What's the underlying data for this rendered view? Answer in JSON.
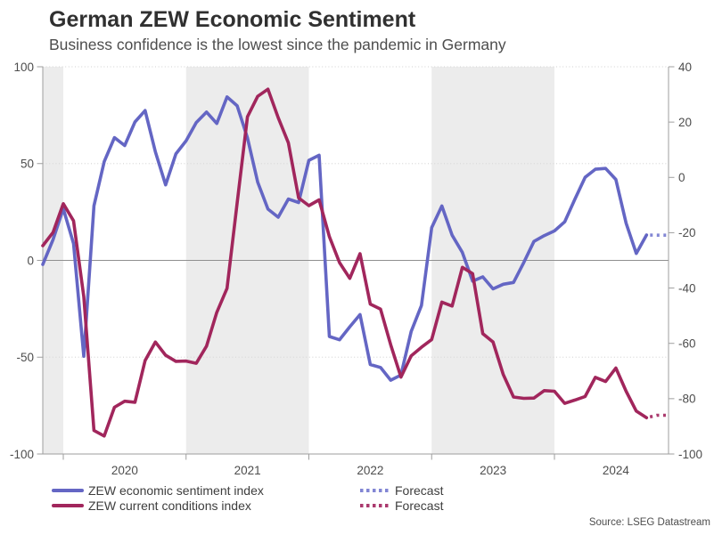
{
  "header": {
    "title": "German ZEW Economic Sentiment",
    "subtitle": "Business confidence is the lowest since the pandemic in Germany"
  },
  "source": "Source: LSEG Datastream",
  "legend": {
    "rows": [
      {
        "series": "sentiment",
        "label": "ZEW economic sentiment index",
        "forecast_label": "Forecast"
      },
      {
        "series": "conditions",
        "label": "ZEW current conditions index",
        "forecast_label": "Forecast"
      }
    ]
  },
  "colors": {
    "sentiment": "#6466c4",
    "sentiment_forecast": "#8286d4",
    "conditions": "#a1265c",
    "conditions_forecast": "#ab3a6e",
    "band": "#ececec",
    "grid_dotted": "#d9d9d9",
    "zero_line": "#8f8f8f",
    "axis": "#9e9e9e",
    "tick_label": "#4d4d4d"
  },
  "chart_data": {
    "type": "line",
    "title": "German ZEW Economic Sentiment",
    "subtitle": "Business confidence is the lowest since the pandemic in Germany",
    "start_month": "2019-11",
    "frequency": "monthly",
    "x_tick_labels": [
      "2020",
      "2021",
      "2022",
      "2023",
      "2024"
    ],
    "shaded_year_bands": [
      2019,
      2021,
      2023
    ],
    "left_axis": {
      "range": [
        -100,
        100
      ],
      "ticks": [
        100,
        50,
        0,
        -50,
        -100
      ],
      "dotted_gridlines": [
        100,
        50,
        -50
      ],
      "zero_line": 0
    },
    "right_axis": {
      "range": [
        -100,
        40
      ],
      "ticks": [
        40,
        20,
        0,
        -20,
        -40,
        -60,
        -80,
        -100
      ]
    },
    "legend_position": "bottom-left",
    "series": [
      {
        "id": "sentiment",
        "name": "ZEW economic sentiment index",
        "axis": "left",
        "values": [
          -2.1,
          10.7,
          26.7,
          8.7,
          -49.5,
          28.2,
          51.0,
          63.4,
          59.3,
          71.5,
          77.4,
          56.1,
          39.0,
          55.0,
          61.8,
          71.2,
          76.6,
          70.7,
          84.4,
          79.8,
          63.3,
          40.4,
          26.5,
          22.3,
          31.7,
          29.9,
          51.7,
          54.3,
          -39.3,
          -41.0,
          -34.3,
          -28.0,
          -53.8,
          -55.3,
          -61.9,
          -59.2,
          -36.7,
          -23.3,
          16.9,
          28.1,
          13.0,
          4.1,
          -10.7,
          -8.5,
          -14.7,
          -12.3,
          -11.4,
          -1.1,
          9.8,
          12.8,
          15.2,
          19.9,
          31.7,
          42.9,
          47.1,
          47.5,
          41.8,
          19.2,
          3.6,
          13.1
        ]
      },
      {
        "id": "conditions",
        "name": "ZEW current conditions index",
        "axis": "right",
        "values": [
          -24.7,
          -19.9,
          -9.5,
          -15.7,
          -43.1,
          -91.5,
          -93.5,
          -83.1,
          -80.9,
          -81.3,
          -66.2,
          -59.5,
          -64.3,
          -66.5,
          -66.4,
          -67.2,
          -61.0,
          -48.8,
          -40.1,
          -9.1,
          21.9,
          29.3,
          31.9,
          21.6,
          12.5,
          -7.4,
          -10.2,
          -8.1,
          -21.4,
          -30.8,
          -36.5,
          -27.6,
          -45.8,
          -47.6,
          -60.5,
          -72.2,
          -64.5,
          -61.4,
          -58.6,
          -45.1,
          -46.5,
          -32.5,
          -34.8,
          -56.5,
          -59.5,
          -71.3,
          -79.4,
          -79.9,
          -79.8,
          -77.1,
          -77.3,
          -81.7,
          -80.5,
          -79.2,
          -72.3,
          -73.8,
          -68.9,
          -77.3,
          -84.5,
          -86.9
        ]
      }
    ],
    "forecast_series": [
      {
        "id": "sentiment",
        "name": "Forecast",
        "axis": "left",
        "values": [
          13,
          13
        ]
      },
      {
        "id": "conditions",
        "name": "Forecast",
        "axis": "right",
        "values": [
          -86,
          -86
        ]
      }
    ]
  }
}
